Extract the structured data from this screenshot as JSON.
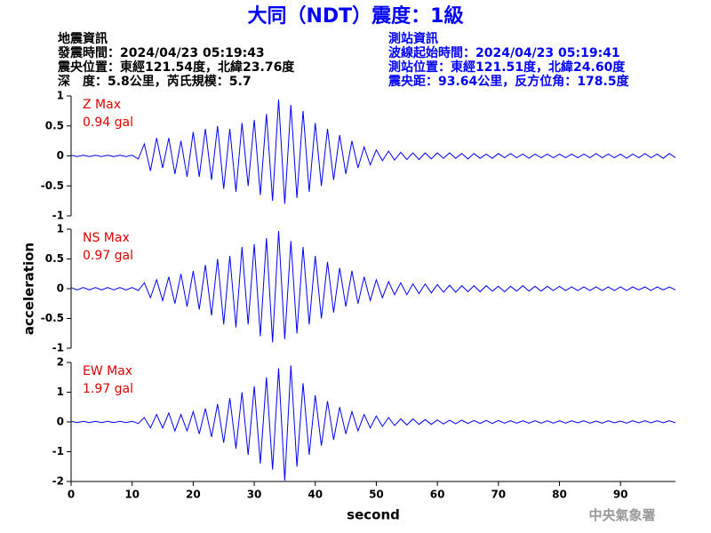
{
  "header": {
    "title": "大同（NDT）震度：1級",
    "left": [
      "地震資訊",
      "發震時間：2024/04/23 05:19:43",
      "震央位置：東經121.54度，北緯23.76度",
      "深　度：5.8公里，芮氏規模：5.7"
    ],
    "right": [
      "測站資訊",
      "波線起始時間：2024/04/23 05:19:41",
      "測站位置：東經121.51度，北緯24.60度",
      "震央距：93.64公里，反方位角：178.5度"
    ]
  },
  "footer": "中央氣象署",
  "chart_data": [
    {
      "type": "line",
      "annotation": "0.94 gal",
      "xlim": [
        0,
        99
      ],
      "ylim": [
        -1,
        1
      ],
      "yticks": [
        -1,
        -0.5,
        0,
        0.5,
        1
      ],
      "x": [
        0,
        1,
        2,
        3,
        4,
        5,
        6,
        7,
        8,
        9,
        10,
        11,
        12,
        13,
        14,
        15,
        16,
        17,
        18,
        19,
        20,
        21,
        22,
        23,
        24,
        25,
        26,
        27,
        28,
        29,
        30,
        31,
        32,
        33,
        34,
        35,
        36,
        37,
        38,
        39,
        40,
        41,
        42,
        43,
        44,
        45,
        46,
        47,
        48,
        49,
        50,
        51,
        52,
        53,
        54,
        55,
        56,
        57,
        58,
        59,
        60,
        61,
        62,
        63,
        64,
        65,
        66,
        67,
        68,
        69,
        70,
        71,
        72,
        73,
        74,
        75,
        76,
        77,
        78,
        79,
        80,
        81,
        82,
        83,
        84,
        85,
        86,
        87,
        88,
        89,
        90,
        91,
        92,
        93,
        94,
        95,
        96,
        97,
        98,
        99
      ],
      "series": [
        {
          "name": "Z Max",
          "color": "#0000ff",
          "values": [
            0.01,
            -0.01,
            0.01,
            -0.01,
            0.01,
            -0.01,
            0.01,
            -0.01,
            0.01,
            -0.01,
            0.01,
            -0.05,
            0.2,
            -0.25,
            0.3,
            -0.2,
            0.3,
            -0.3,
            0.25,
            -0.35,
            0.4,
            -0.35,
            0.45,
            -0.4,
            0.5,
            -0.55,
            0.45,
            -0.6,
            0.55,
            -0.5,
            0.6,
            -0.65,
            0.7,
            -0.75,
            0.94,
            -0.8,
            0.85,
            -0.7,
            0.75,
            -0.6,
            0.55,
            -0.5,
            0.45,
            -0.4,
            0.35,
            -0.3,
            0.25,
            -0.2,
            0.15,
            -0.15,
            0.1,
            -0.08,
            0.08,
            -0.07,
            0.06,
            -0.06,
            0.05,
            -0.06,
            0.05,
            -0.05,
            0.05,
            -0.04,
            0.05,
            -0.04,
            0.04,
            -0.05,
            0.04,
            -0.04,
            0.03,
            -0.04,
            0.04,
            -0.03,
            0.04,
            -0.03,
            0.03,
            -0.04,
            0.03,
            -0.03,
            0.03,
            -0.03,
            0.03,
            -0.03,
            0.03,
            -0.03,
            0.03,
            -0.03,
            0.04,
            -0.03,
            0.03,
            -0.03,
            0.03,
            -0.04,
            0.03,
            -0.03,
            0.04,
            -0.03,
            0.03,
            -0.04,
            0.04,
            -0.03
          ]
        }
      ]
    },
    {
      "type": "line",
      "annotation": "0.97 gal",
      "ylabel": "acceleration",
      "xlim": [
        0,
        99
      ],
      "ylim": [
        -1,
        1
      ],
      "yticks": [
        -1,
        -0.5,
        0,
        0.5,
        1
      ],
      "x": [
        0,
        1,
        2,
        3,
        4,
        5,
        6,
        7,
        8,
        9,
        10,
        11,
        12,
        13,
        14,
        15,
        16,
        17,
        18,
        19,
        20,
        21,
        22,
        23,
        24,
        25,
        26,
        27,
        28,
        29,
        30,
        31,
        32,
        33,
        34,
        35,
        36,
        37,
        38,
        39,
        40,
        41,
        42,
        43,
        44,
        45,
        46,
        47,
        48,
        49,
        50,
        51,
        52,
        53,
        54,
        55,
        56,
        57,
        58,
        59,
        60,
        61,
        62,
        63,
        64,
        65,
        66,
        67,
        68,
        69,
        70,
        71,
        72,
        73,
        74,
        75,
        76,
        77,
        78,
        79,
        80,
        81,
        82,
        83,
        84,
        85,
        86,
        87,
        88,
        89,
        90,
        91,
        92,
        93,
        94,
        95,
        96,
        97,
        98,
        99
      ],
      "series": [
        {
          "name": "NS Max",
          "color": "#0000ff",
          "values": [
            0.02,
            -0.02,
            0.02,
            -0.02,
            0.02,
            -0.02,
            0.02,
            -0.02,
            0.02,
            -0.02,
            0.02,
            -0.03,
            0.1,
            -0.15,
            0.15,
            -0.2,
            0.2,
            -0.25,
            0.25,
            -0.3,
            0.3,
            -0.35,
            0.4,
            -0.45,
            0.5,
            -0.6,
            0.55,
            -0.65,
            0.7,
            -0.6,
            0.75,
            -0.8,
            0.85,
            -0.9,
            0.97,
            -0.85,
            0.8,
            -0.75,
            0.7,
            -0.6,
            0.55,
            -0.5,
            0.45,
            -0.4,
            0.35,
            -0.3,
            0.3,
            -0.25,
            0.2,
            -0.2,
            0.15,
            -0.15,
            0.12,
            -0.1,
            0.1,
            -0.1,
            0.08,
            -0.08,
            0.08,
            -0.07,
            0.07,
            -0.06,
            0.06,
            -0.06,
            0.05,
            -0.05,
            0.05,
            -0.05,
            0.05,
            -0.04,
            0.04,
            -0.05,
            0.04,
            -0.04,
            0.05,
            -0.04,
            0.04,
            -0.04,
            0.04,
            -0.03,
            0.04,
            -0.03,
            0.03,
            -0.03,
            0.03,
            -0.03,
            0.03,
            -0.03,
            0.03,
            -0.03,
            0.03,
            -0.03,
            0.03,
            -0.02,
            0.03,
            -0.03,
            0.03,
            -0.02,
            0.03,
            -0.02
          ]
        }
      ]
    },
    {
      "type": "line",
      "annotation": "1.97 gal",
      "xlabel": "second",
      "xlim": [
        0,
        99
      ],
      "ylim": [
        -2,
        2
      ],
      "yticks": [
        -2,
        -1,
        0,
        1,
        2
      ],
      "xticks": [
        0,
        10,
        20,
        30,
        40,
        50,
        60,
        70,
        80,
        90
      ],
      "x": [
        0,
        1,
        2,
        3,
        4,
        5,
        6,
        7,
        8,
        9,
        10,
        11,
        12,
        13,
        14,
        15,
        16,
        17,
        18,
        19,
        20,
        21,
        22,
        23,
        24,
        25,
        26,
        27,
        28,
        29,
        30,
        31,
        32,
        33,
        34,
        35,
        36,
        37,
        38,
        39,
        40,
        41,
        42,
        43,
        44,
        45,
        46,
        47,
        48,
        49,
        50,
        51,
        52,
        53,
        54,
        55,
        56,
        57,
        58,
        59,
        60,
        61,
        62,
        63,
        64,
        65,
        66,
        67,
        68,
        69,
        70,
        71,
        72,
        73,
        74,
        75,
        76,
        77,
        78,
        79,
        80,
        81,
        82,
        83,
        84,
        85,
        86,
        87,
        88,
        89,
        90,
        91,
        92,
        93,
        94,
        95,
        96,
        97,
        98,
        99
      ],
      "series": [
        {
          "name": "EW Max",
          "color": "#0000ff",
          "values": [
            0.02,
            -0.02,
            0.02,
            -0.02,
            0.02,
            -0.02,
            0.02,
            -0.02,
            0.02,
            -0.02,
            0.02,
            -0.05,
            0.15,
            -0.2,
            0.25,
            -0.2,
            0.3,
            -0.3,
            0.25,
            -0.3,
            0.35,
            -0.4,
            0.45,
            -0.5,
            0.6,
            -0.7,
            0.8,
            -0.9,
            1.0,
            -1.1,
            1.2,
            -1.4,
            1.5,
            -1.6,
            1.8,
            -1.97,
            1.9,
            -1.5,
            1.3,
            -1.1,
            0.9,
            -0.8,
            0.7,
            -0.6,
            0.5,
            -0.4,
            0.35,
            -0.3,
            0.25,
            -0.2,
            0.2,
            -0.15,
            0.15,
            -0.12,
            0.1,
            -0.1,
            0.1,
            -0.08,
            0.08,
            -0.08,
            0.07,
            -0.07,
            0.06,
            -0.06,
            0.06,
            -0.05,
            0.05,
            -0.05,
            0.05,
            -0.05,
            0.05,
            -0.04,
            0.04,
            -0.04,
            0.04,
            -0.04,
            0.04,
            -0.04,
            0.04,
            -0.04,
            0.04,
            -0.04,
            0.04,
            -0.03,
            0.04,
            -0.04,
            0.03,
            -0.04,
            0.04,
            -0.03,
            0.03,
            -0.04,
            0.04,
            -0.03,
            0.04,
            -0.03,
            0.04,
            -0.03,
            0.04,
            -0.03
          ]
        }
      ]
    }
  ]
}
